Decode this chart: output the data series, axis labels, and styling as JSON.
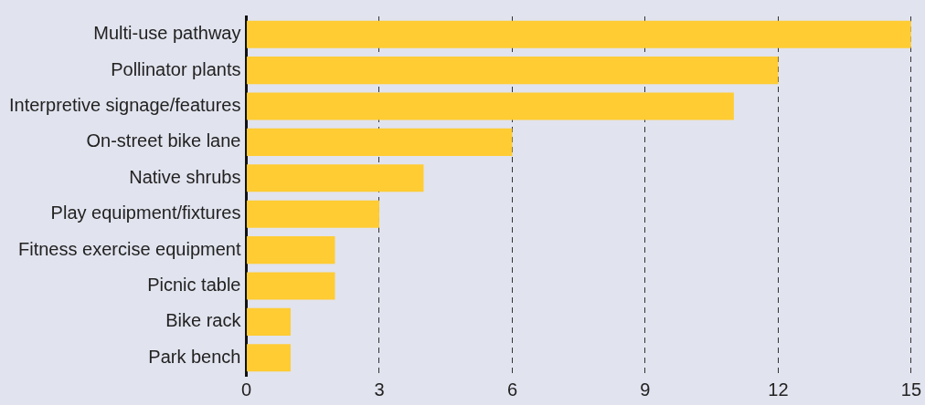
{
  "chart_data": {
    "type": "bar",
    "orientation": "horizontal",
    "categories": [
      "Multi-use pathway",
      "Pollinator plants",
      "Interpretive signage/features",
      "On-street bike lane",
      "Native shrubs",
      "Play equipment/fixtures",
      "Fitness exercise equipment",
      "Picnic table",
      "Bike rack",
      "Park bench"
    ],
    "values": [
      15,
      12,
      11,
      6,
      4,
      3,
      2,
      2,
      1,
      1
    ],
    "color": "#ffcc33",
    "xlim": [
      0,
      15
    ],
    "xticks": [
      0,
      3,
      6,
      9,
      12,
      15
    ],
    "grid": "x",
    "legend": false
  }
}
